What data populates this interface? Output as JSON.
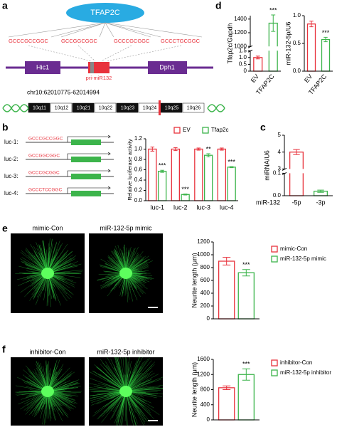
{
  "figure": {
    "a": {
      "label": "a",
      "factor": "TFAP2C",
      "sites": [
        "GCCCGCCGGC",
        "GCCGGCGGC",
        "GCCCGCGGC",
        "GCCCTGCGGC"
      ],
      "genes": [
        "Hic1",
        "pri-miR132",
        "Dph1"
      ],
      "locus": "chr10:62010775-62014994",
      "bands": [
        "10q11",
        "10q12",
        "10q21",
        "10q22",
        "10q23",
        "10q24",
        "10q25",
        "10q26"
      ]
    },
    "b": {
      "label": "b",
      "constructs": [
        {
          "name": "luc-1:",
          "seq": "GCCCGCCGGC"
        },
        {
          "name": "luc-2:",
          "seq": "GCCGGCGGC"
        },
        {
          "name": "luc-3:",
          "seq": "GCCCGCGGC"
        },
        {
          "name": "luc-4:",
          "seq": "GCCCTCCGGC"
        }
      ]
    },
    "c": {
      "label": "c"
    },
    "d": {
      "label": "d"
    },
    "e": {
      "label": "e",
      "images": [
        "mimic-Con",
        "miR-132-5p mimic"
      ]
    },
    "f": {
      "label": "f",
      "images": [
        "inhibitor-Con",
        "miR-132-5p inhibitor"
      ]
    }
  },
  "chart_data": [
    {
      "type": "bar",
      "ylabel": "Tfap2c/Gapdh",
      "categories": [
        "EV",
        "TFAP2C"
      ],
      "values": [
        1.0,
        1340
      ],
      "errors": [
        0.1,
        120
      ],
      "colors": [
        "#e8323c",
        "#3cb44b"
      ],
      "annotations": [
        null,
        "***"
      ],
      "ylim": [
        0,
        1450
      ],
      "ybreak": [
        1.5,
        1000
      ],
      "yticks": [
        0,
        0.5,
        {
          "value": 1,
          "label": "1.0"
        },
        1.5,
        1000,
        1200,
        1400
      ]
    },
    {
      "type": "bar",
      "ylabel": "miR-132-5p/U6",
      "categories": [
        "EV",
        "TFAP2C"
      ],
      "values": [
        0.85,
        0.57
      ],
      "errors": [
        0.05,
        0.04
      ],
      "colors": [
        "#e8323c",
        "#3cb44b"
      ],
      "annotations": [
        null,
        "***"
      ],
      "ylim": [
        0,
        1.0
      ],
      "yticks": [
        {
          "value": 0,
          "label": "0.0"
        },
        0.5,
        {
          "value": 1,
          "label": "1.0"
        }
      ]
    },
    {
      "type": "bar",
      "ylabel": "Relative luciferase activity",
      "categories": [
        "luc-1",
        "luc-2",
        "luc-3",
        "luc-4"
      ],
      "series": [
        {
          "name": "EV",
          "color": "#e8323c",
          "values": [
            1.0,
            1.0,
            1.0,
            1.0
          ],
          "errors": [
            0.04,
            0.03,
            0.02,
            0.02
          ]
        },
        {
          "name": "Tfap2c",
          "color": "#3cb44b",
          "values": [
            0.57,
            0.12,
            0.88,
            0.65
          ],
          "errors": [
            0.02,
            0.01,
            0.03,
            0.01
          ],
          "annotations": [
            "***",
            "***",
            "**",
            "***"
          ]
        }
      ],
      "legend": "top",
      "ylim": [
        0,
        1.2
      ],
      "yticks": [
        {
          "value": 0,
          "label": "0.0"
        },
        0.2,
        0.4,
        0.6,
        0.8,
        {
          "value": 1,
          "label": "1.0"
        },
        1.2
      ]
    },
    {
      "type": "bar",
      "ylabel": "miRNA/U6",
      "xgroup": "miR-132",
      "categories": [
        "-5p",
        "-3p"
      ],
      "values": [
        4.0,
        0.02
      ],
      "errors": [
        0.15,
        0.005
      ],
      "colors": [
        "#e8323c",
        "#3cb44b"
      ],
      "ylim": [
        0,
        5
      ],
      "ybreak": [
        0.1,
        3
      ],
      "yticks": [
        {
          "value": 0,
          "label": "0.0"
        },
        0.1,
        3,
        4,
        5
      ]
    },
    {
      "type": "bar",
      "ylabel": "Neurite length (μm)",
      "categories": [
        null
      ],
      "series": [
        {
          "name": "mimic-Con",
          "color": "#e8323c",
          "values": [
            900
          ],
          "errors": [
            60
          ]
        },
        {
          "name": "miR-132-5p mimic",
          "color": "#3cb44b",
          "values": [
            720
          ],
          "errors": [
            50
          ],
          "annotations": [
            "***"
          ]
        }
      ],
      "legend": "right",
      "ylim": [
        0,
        1200
      ],
      "yticks": [
        0,
        200,
        400,
        600,
        800,
        1000,
        1200
      ]
    },
    {
      "type": "bar",
      "ylabel": "Neurite length (μm)",
      "categories": [
        null
      ],
      "series": [
        {
          "name": "inhibitor-Con",
          "color": "#e8323c",
          "values": [
            850
          ],
          "errors": [
            50
          ]
        },
        {
          "name": "miR-132-5p inhibitor",
          "color": "#3cb44b",
          "values": [
            1200
          ],
          "errors": [
            150
          ],
          "annotations": [
            "***"
          ]
        }
      ],
      "legend": "right",
      "ylim": [
        0,
        1600
      ],
      "yticks": [
        0,
        400,
        800,
        1200,
        1600
      ]
    }
  ]
}
